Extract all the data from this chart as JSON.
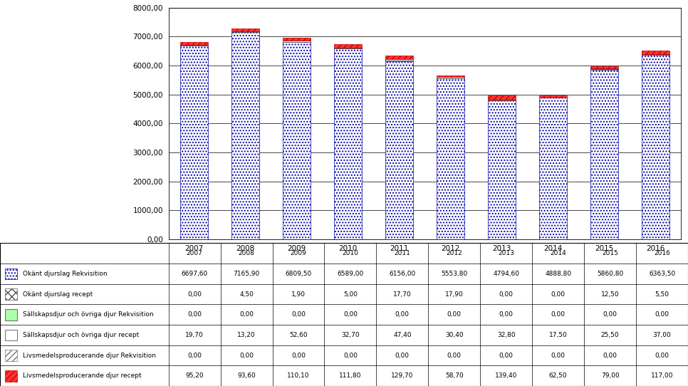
{
  "years": [
    "2007",
    "2008",
    "2009",
    "2010",
    "2011",
    "2012",
    "2013",
    "2014",
    "2015",
    "2016"
  ],
  "series": [
    {
      "label": "Okänt djurslag Rekvisition",
      "values": [
        6697.6,
        7165.9,
        6809.5,
        6589.0,
        6156.0,
        5553.8,
        4794.6,
        4888.8,
        5860.8,
        6363.5
      ],
      "color": "#ffffff",
      "hatch": "....",
      "edgecolor": "#0000aa",
      "legend_hatch": "....",
      "legend_edge": "#0000aa"
    },
    {
      "label": "Okänt djurslag recept",
      "values": [
        0.0,
        4.5,
        1.9,
        5.0,
        17.7,
        17.9,
        0.0,
        0.0,
        12.5,
        5.5
      ],
      "color": "#ffffff",
      "hatch": "xxx",
      "edgecolor": "#555555",
      "legend_hatch": "xxx",
      "legend_edge": "#555555"
    },
    {
      "label": "Sällskapsdjur och övriga djur Rekvisition",
      "values": [
        0.0,
        0.0,
        0.0,
        0.0,
        0.0,
        0.0,
        0.0,
        0.0,
        0.0,
        0.0
      ],
      "color": "#aaffaa",
      "hatch": "",
      "edgecolor": "#333333",
      "legend_hatch": "",
      "legend_edge": "#333333"
    },
    {
      "label": "Sällskapsdjur och övriga djur recept",
      "values": [
        19.7,
        13.2,
        52.6,
        32.7,
        47.4,
        30.4,
        32.8,
        17.5,
        25.5,
        37.0
      ],
      "color": "#ffffff",
      "hatch": "",
      "edgecolor": "#333333",
      "legend_hatch": "",
      "legend_edge": "#333333"
    },
    {
      "label": "Livsmedelsproducerande djur Rekvisition",
      "values": [
        0.0,
        0.0,
        0.0,
        0.0,
        0.0,
        0.0,
        0.0,
        0.0,
        0.0,
        0.0
      ],
      "color": "#ffffff",
      "hatch": "////",
      "edgecolor": "#777777",
      "legend_hatch": "////",
      "legend_edge": "#777777"
    },
    {
      "label": "Livsmedelsproducerande djur recept",
      "values": [
        95.2,
        93.6,
        110.1,
        111.8,
        129.7,
        58.7,
        139.4,
        62.5,
        79.0,
        117.0
      ],
      "color": "#ff3333",
      "hatch": "////",
      "edgecolor": "#cc0000",
      "legend_hatch": "////",
      "legend_edge": "#cc0000"
    }
  ],
  "ylim": [
    0,
    8000
  ],
  "yticks": [
    0,
    1000,
    2000,
    3000,
    4000,
    5000,
    6000,
    7000,
    8000
  ],
  "background_color": "#ffffff",
  "bar_width": 0.55,
  "legend_fontsize": 6.5,
  "tick_fontsize": 7.5,
  "table_fontsize": 6.5
}
